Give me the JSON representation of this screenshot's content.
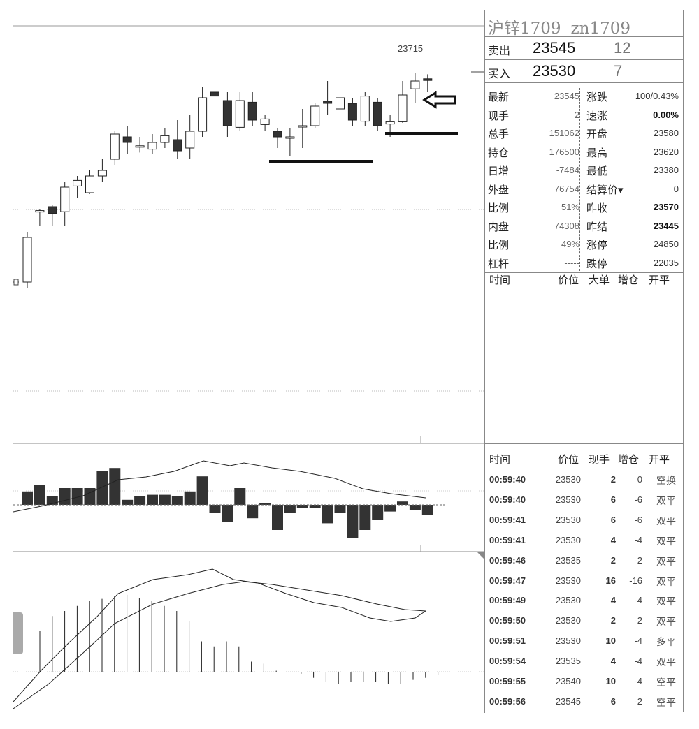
{
  "instrument": {
    "name": "沪锌1709",
    "code": "zn1709"
  },
  "quote": {
    "ask_label": "卖出",
    "ask_price": "23545",
    "ask_vol": "12",
    "bid_label": "买入",
    "bid_price": "23530",
    "bid_vol": "7"
  },
  "stats": [
    {
      "k": "最新",
      "v": "23545",
      "k2": "涨跌",
      "v2": "100/0.43%",
      "b": false
    },
    {
      "k": "现手",
      "v": "2",
      "k2": "速涨",
      "v2": "0.00%",
      "b": true
    },
    {
      "k": "总手",
      "v": "151062",
      "k2": "开盘",
      "v2": "23580",
      "b": false
    },
    {
      "k": "持仓",
      "v": "176500",
      "k2": "最高",
      "v2": "23620",
      "b": false
    },
    {
      "k": "日增",
      "v": "-7484",
      "k2": "最低",
      "v2": "23380",
      "b": false
    },
    {
      "k": "外盘",
      "v": "76754",
      "k2": "结算价▾",
      "v2": "0",
      "b": false
    },
    {
      "k": "比例",
      "v": "51%",
      "k2": "昨收",
      "v2": "23570",
      "b": true
    },
    {
      "k": "内盘",
      "v": "74308",
      "k2": "昨结",
      "v2": "23445",
      "b": true
    },
    {
      "k": "比例",
      "v": "49%",
      "k2": "涨停",
      "v2": "24850",
      "b": false
    },
    {
      "k": "杠杆",
      "v": "-----",
      "k2": "跌停",
      "v2": "22035",
      "b": false
    }
  ],
  "ticks1_headers": {
    "time": "时间",
    "price": "价位",
    "big": "大单",
    "oi": "增仓",
    "type": "开平"
  },
  "ticks2_headers": {
    "time": "时间",
    "price": "价位",
    "vol": "现手",
    "oi": "增仓",
    "type": "开平"
  },
  "ticks": [
    {
      "t": "00:59:40",
      "p": "23530",
      "v": "2",
      "oi": "0",
      "tp": "空换"
    },
    {
      "t": "00:59:40",
      "p": "23530",
      "v": "6",
      "oi": "-6",
      "tp": "双平"
    },
    {
      "t": "00:59:41",
      "p": "23530",
      "v": "6",
      "oi": "-6",
      "tp": "双平"
    },
    {
      "t": "00:59:41",
      "p": "23530",
      "v": "4",
      "oi": "-4",
      "tp": "双平"
    },
    {
      "t": "00:59:46",
      "p": "23535",
      "v": "2",
      "oi": "-2",
      "tp": "双平"
    },
    {
      "t": "00:59:47",
      "p": "23530",
      "v": "16",
      "oi": "-16",
      "tp": "双平"
    },
    {
      "t": "00:59:49",
      "p": "23530",
      "v": "4",
      "oi": "-4",
      "tp": "双平"
    },
    {
      "t": "00:59:50",
      "p": "23530",
      "v": "2",
      "oi": "-2",
      "tp": "双平"
    },
    {
      "t": "00:59:51",
      "p": "23530",
      "v": "10",
      "oi": "-4",
      "tp": "多平"
    },
    {
      "t": "00:59:54",
      "p": "23535",
      "v": "4",
      "oi": "-4",
      "tp": "双平"
    },
    {
      "t": "00:59:55",
      "p": "23540",
      "v": "10",
      "oi": "-4",
      "tp": "空平"
    },
    {
      "t": "00:59:56",
      "p": "23545",
      "v": "6",
      "oi": "-2",
      "tp": "空平"
    }
  ],
  "chart": {
    "high_label": "23715",
    "candles": [
      {
        "o": 23340,
        "c": 23420,
        "h": 23430,
        "l": 23330
      },
      {
        "o": 23468,
        "c": 23468,
        "h": 23470,
        "l": 23440
      },
      {
        "o": 23475,
        "c": 23463,
        "h": 23478,
        "l": 23440
      },
      {
        "o": 23466,
        "c": 23510,
        "h": 23520,
        "l": 23440
      },
      {
        "o": 23512,
        "c": 23522,
        "h": 23530,
        "l": 23490
      },
      {
        "o": 23500,
        "c": 23530,
        "h": 23540,
        "l": 23498
      },
      {
        "o": 23530,
        "c": 23540,
        "h": 23560,
        "l": 23520
      },
      {
        "o": 23560,
        "c": 23605,
        "h": 23610,
        "l": 23550
      },
      {
        "o": 23600,
        "c": 23590,
        "h": 23620,
        "l": 23570
      },
      {
        "o": 23584,
        "c": 23584,
        "h": 23600,
        "l": 23572
      },
      {
        "o": 23578,
        "c": 23590,
        "h": 23605,
        "l": 23570
      },
      {
        "o": 23590,
        "c": 23602,
        "h": 23615,
        "l": 23580
      },
      {
        "o": 23595,
        "c": 23575,
        "h": 23630,
        "l": 23560
      },
      {
        "o": 23580,
        "c": 23610,
        "h": 23640,
        "l": 23560
      },
      {
        "o": 23610,
        "c": 23670,
        "h": 23690,
        "l": 23600
      },
      {
        "o": 23680,
        "c": 23673,
        "h": 23684,
        "l": 23668
      },
      {
        "o": 23665,
        "c": 23620,
        "h": 23680,
        "l": 23600
      },
      {
        "o": 23617,
        "c": 23665,
        "h": 23680,
        "l": 23610
      },
      {
        "o": 23662,
        "c": 23630,
        "h": 23680,
        "l": 23620
      },
      {
        "o": 23622,
        "c": 23632,
        "h": 23640,
        "l": 23610
      },
      {
        "o": 23610,
        "c": 23600,
        "h": 23615,
        "l": 23580
      },
      {
        "o": 23600,
        "c": 23600,
        "h": 23615,
        "l": 23565
      },
      {
        "o": 23618,
        "c": 23620,
        "h": 23650,
        "l": 23580
      },
      {
        "o": 23620,
        "c": 23655,
        "h": 23660,
        "l": 23615
      },
      {
        "o": 23664,
        "c": 23660,
        "h": 23700,
        "l": 23640
      },
      {
        "o": 23650,
        "c": 23670,
        "h": 23690,
        "l": 23640
      },
      {
        "o": 23660,
        "c": 23630,
        "h": 23670,
        "l": 23620
      },
      {
        "o": 23628,
        "c": 23673,
        "h": 23680,
        "l": 23620
      },
      {
        "o": 23662,
        "c": 23620,
        "h": 23670,
        "l": 23610
      },
      {
        "o": 23623,
        "c": 23627,
        "h": 23640,
        "l": 23600
      },
      {
        "o": 23627,
        "c": 23675,
        "h": 23700,
        "l": 23625
      },
      {
        "o": 23686,
        "c": 23700,
        "h": 23715,
        "l": 23660
      },
      {
        "o": 23704,
        "c": 23701,
        "h": 23712,
        "l": 23680
      }
    ],
    "volume": [
      8,
      12,
      5,
      10,
      10,
      10,
      20,
      22,
      3,
      5,
      6,
      6,
      5,
      8,
      17,
      -5,
      -10,
      10,
      -8,
      1,
      -15,
      -5,
      -2,
      -2,
      -11,
      -5,
      -20,
      -15,
      -9,
      -4,
      2,
      -3,
      -6
    ],
    "macd_hist": [
      -40,
      -55,
      -60,
      -65,
      -70,
      -72,
      -75,
      -76,
      -73,
      -70,
      -65,
      -60,
      -50,
      -30,
      -25,
      -30,
      -25,
      -10,
      -8,
      -1,
      0,
      2,
      6,
      10,
      12,
      10,
      10,
      10,
      12,
      12,
      8,
      6,
      3
    ]
  }
}
